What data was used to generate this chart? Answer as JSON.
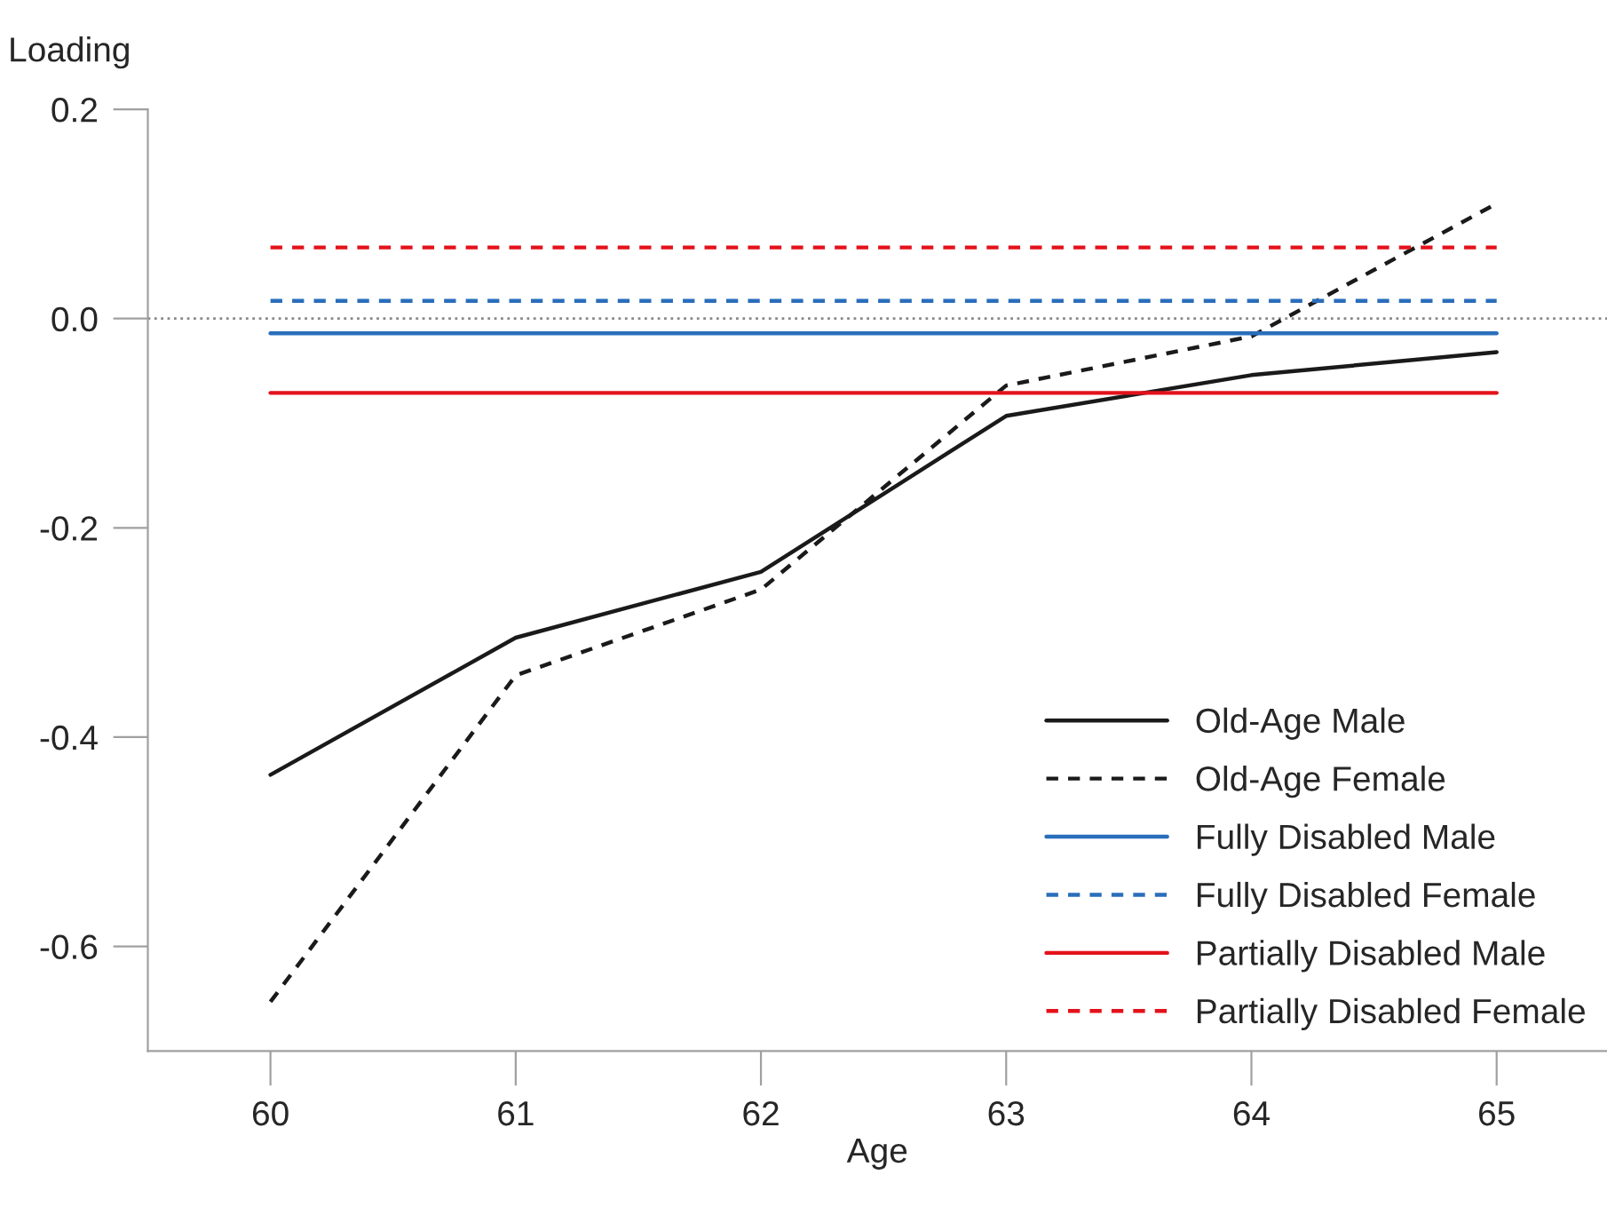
{
  "chart_data": {
    "type": "line",
    "ylabel": "Loading",
    "xlabel": "Age",
    "x": [
      60,
      61,
      62,
      63,
      64,
      65
    ],
    "series": [
      {
        "name": "Old-Age Male",
        "color": "#1a1a1a",
        "line_style": "solid",
        "values": [
          -0.436,
          -0.305,
          -0.242,
          -0.093,
          -0.054,
          -0.032
        ]
      },
      {
        "name": "Old-Age Female",
        "color": "#1a1a1a",
        "line_style": "dashed",
        "values": [
          -0.653,
          -0.341,
          -0.259,
          -0.064,
          -0.017,
          0.11
        ]
      },
      {
        "name": "Fully Disabled Male",
        "color": "#2a6ebb",
        "line_style": "solid",
        "values": [
          -0.014,
          -0.014,
          -0.014,
          -0.014,
          -0.014,
          -0.014
        ]
      },
      {
        "name": "Fully Disabled Female",
        "color": "#2a6ebb",
        "line_style": "dashed",
        "values": [
          0.017,
          0.017,
          0.017,
          0.017,
          0.017,
          0.017
        ]
      },
      {
        "name": "Partially Disabled Male",
        "color": "#e3121b",
        "line_style": "solid",
        "values": [
          -0.071,
          -0.071,
          -0.071,
          -0.071,
          -0.071,
          -0.071
        ]
      },
      {
        "name": "Partially Disabled Female",
        "color": "#e3121b",
        "line_style": "dashed",
        "values": [
          0.068,
          0.068,
          0.068,
          0.068,
          0.068,
          0.068
        ]
      }
    ],
    "xlim": [
      59.5,
      65.45
    ],
    "xticks": [
      60,
      61,
      62,
      63,
      64,
      65
    ],
    "ylim": [
      -0.7,
      0.2
    ],
    "yticks": [
      -0.6,
      -0.4,
      -0.2,
      {
        "value": 0,
        "label": "0.0"
      },
      0.2
    ],
    "ref_lines": [
      {
        "axis": "y",
        "value": 0,
        "color": "#888888",
        "line_style": "dotted"
      }
    ],
    "grid": false,
    "legend": "bottom right",
    "marker": "none"
  }
}
